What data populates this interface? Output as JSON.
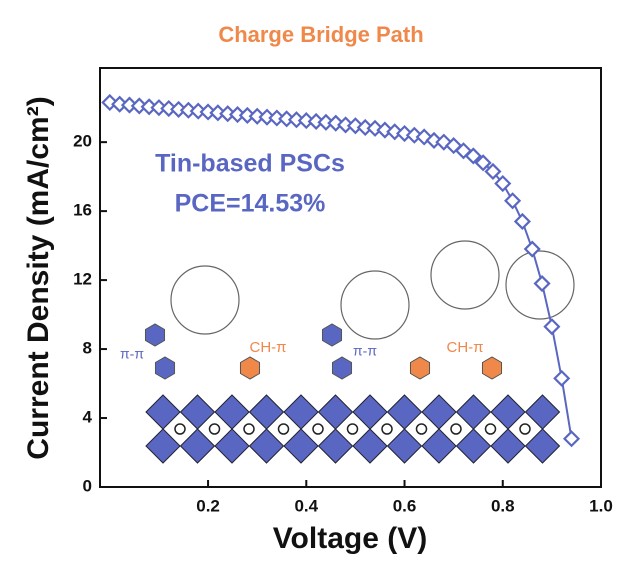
{
  "chart_data": {
    "type": "line",
    "title": "Charge Bridge Path",
    "xlabel": "Voltage (V)",
    "ylabel": "Current Density (mA/cm²)",
    "annotations": [
      "Tin-based PSCs",
      "PCE=14.53%",
      "π-π",
      "CH-π",
      "π-π",
      "CH-π"
    ],
    "x": [
      0.0,
      0.02,
      0.04,
      0.06,
      0.08,
      0.1,
      0.12,
      0.14,
      0.16,
      0.18,
      0.2,
      0.22,
      0.24,
      0.26,
      0.28,
      0.3,
      0.32,
      0.34,
      0.36,
      0.38,
      0.4,
      0.42,
      0.44,
      0.46,
      0.48,
      0.5,
      0.52,
      0.54,
      0.56,
      0.58,
      0.6,
      0.62,
      0.64,
      0.66,
      0.68,
      0.7,
      0.72,
      0.74,
      0.76,
      0.78,
      0.8,
      0.82,
      0.84,
      0.86,
      0.88,
      0.9,
      0.92,
      0.94
    ],
    "series": [
      {
        "color": "#5a67c2",
        "values": [
          22.3,
          22.2,
          22.15,
          22.1,
          22.05,
          22.0,
          21.95,
          21.9,
          21.85,
          21.8,
          21.75,
          21.7,
          21.65,
          21.6,
          21.55,
          21.5,
          21.45,
          21.4,
          21.35,
          21.3,
          21.25,
          21.2,
          21.15,
          21.1,
          21.0,
          20.95,
          20.85,
          20.8,
          20.7,
          20.6,
          20.5,
          20.4,
          20.3,
          20.1,
          20.0,
          19.8,
          19.5,
          19.2,
          18.8,
          18.3,
          17.6,
          16.6,
          15.4,
          13.8,
          11.8,
          9.3,
          6.3,
          2.8
        ]
      }
    ],
    "xlim": [
      -0.02,
      1.0
    ],
    "ylim": [
      0,
      24.3
    ],
    "xticks": [
      0.2,
      0.4,
      0.6,
      0.8,
      {
        "value": 1.0,
        "label": "1.0"
      }
    ],
    "yticks": [
      0,
      4,
      8,
      12,
      16,
      20
    ],
    "title_color": "#f0884a",
    "annotation_colors": [
      "#5a67c2",
      "#5a67c2",
      "#5a67c2",
      "#f0884a",
      "#5a67c2",
      "#f0884a"
    ]
  }
}
